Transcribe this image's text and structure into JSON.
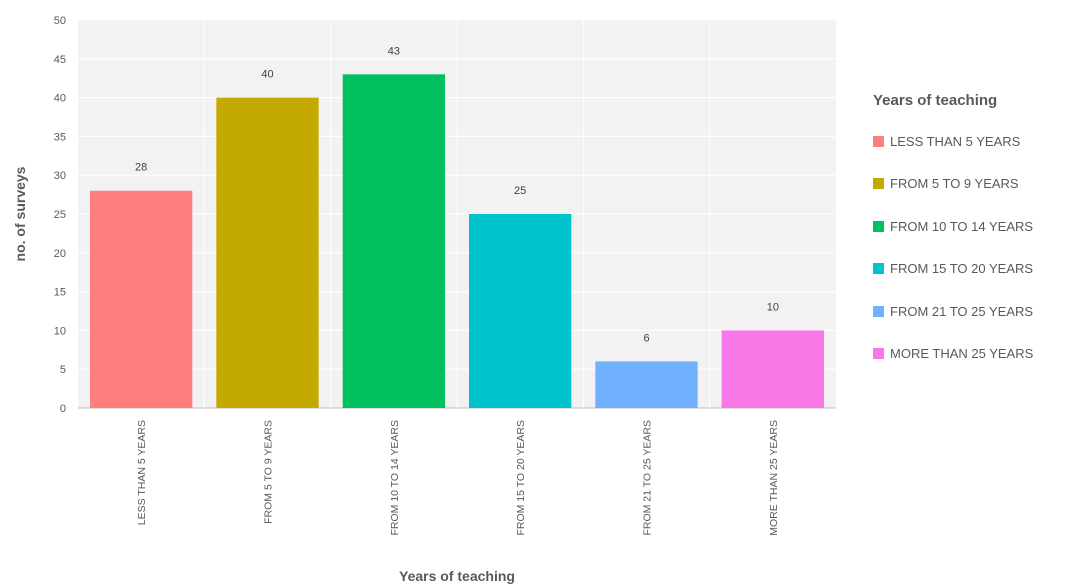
{
  "chart_data": {
    "type": "bar",
    "title": "",
    "xlabel": "Years of teaching",
    "ylabel": "no. of surveys",
    "ylim": [
      0,
      50
    ],
    "yticks": [
      0,
      5,
      10,
      15,
      20,
      25,
      30,
      35,
      40,
      45,
      50
    ],
    "grid": true,
    "legend_position": "right",
    "legend_title": "Years of teaching",
    "categories": [
      "LESS THAN 5 YEARS",
      "FROM 5 TO 9 YEARS",
      "FROM 10 TO 14 YEARS",
      "FROM 15 TO 20 YEARS",
      "FROM 21 TO 25 YEARS",
      "MORE THAN 25 YEARS"
    ],
    "values": [
      28,
      40,
      43,
      25,
      6,
      10
    ],
    "colors": [
      "#ff7f7f",
      "#c4aa00",
      "#00c060",
      "#00c4cc",
      "#6fb0ff",
      "#f878e8"
    ]
  }
}
